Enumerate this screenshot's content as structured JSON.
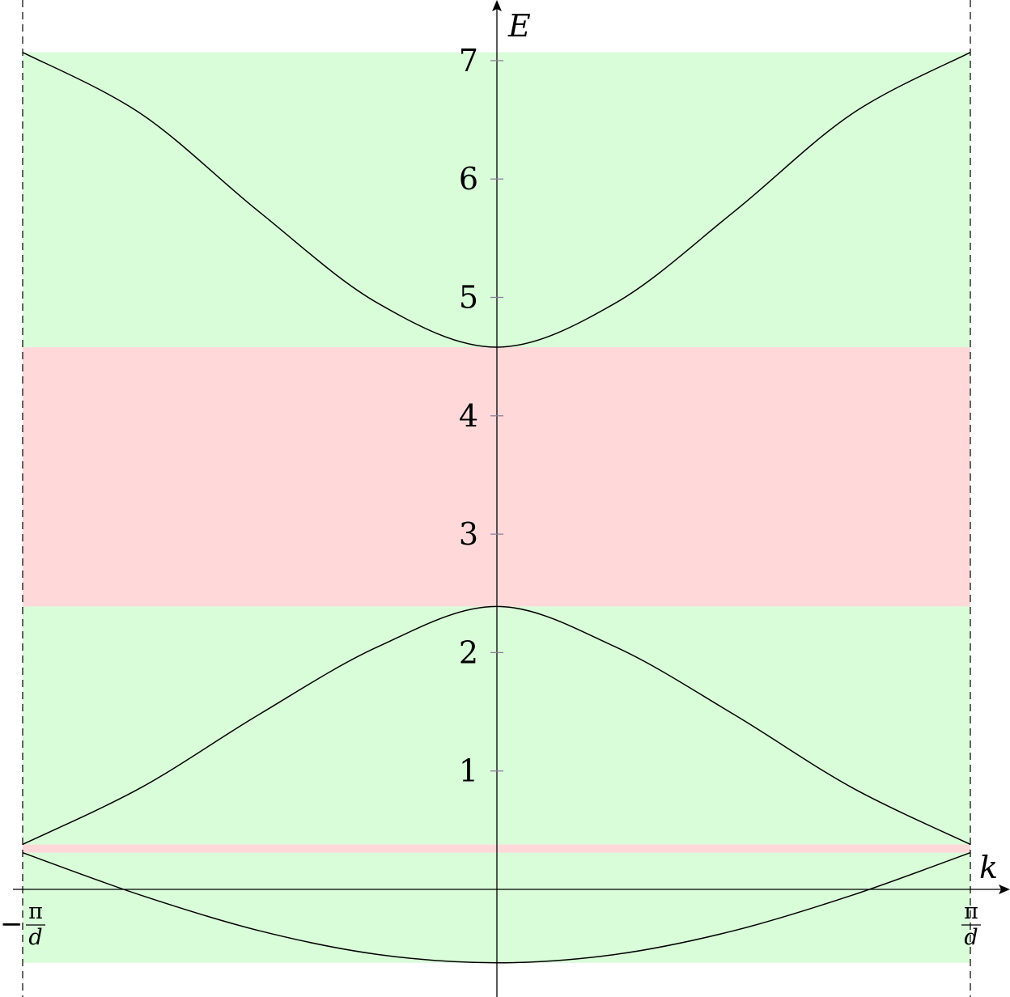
{
  "chart_data": {
    "type": "line",
    "xlabel": "k",
    "ylabel": "E",
    "xlim": [
      "-π/d",
      "π/d"
    ],
    "x_domain": [
      -1,
      1
    ],
    "ylim": [
      -0.62,
      7.5
    ],
    "yticks": [
      "1",
      "2",
      "3",
      "4",
      "5",
      "6",
      "7"
    ],
    "xticks": {
      "left": {
        "sign": "−",
        "numerator": "π",
        "denominator": "d"
      },
      "right": {
        "numerator": "π",
        "denominator": "d"
      }
    },
    "boundary_lines": "dashed vertical lines at k = ±π/d",
    "bands": [
      {
        "kind": "allowed",
        "from": -0.62,
        "to": 0.31
      },
      {
        "kind": "gap",
        "from": 0.31,
        "to": 0.38
      },
      {
        "kind": "allowed",
        "from": 0.38,
        "to": 2.39
      },
      {
        "kind": "gap",
        "from": 2.39,
        "to": 4.58
      },
      {
        "kind": "allowed",
        "from": 4.58,
        "to": 7.07
      }
    ],
    "series": [
      {
        "x": [
          -1,
          -0.75,
          -0.5,
          -0.25,
          0,
          0.25,
          0.5,
          0.75,
          1
        ],
        "y": [
          0.31,
          -0.05,
          -0.35,
          -0.55,
          -0.62,
          -0.55,
          -0.35,
          -0.05,
          0.31
        ]
      },
      {
        "x": [
          -1,
          -0.75,
          -0.5,
          -0.25,
          0,
          0.25,
          0.5,
          0.75,
          1
        ],
        "y": [
          0.38,
          0.86,
          1.48,
          2.05,
          2.39,
          2.05,
          1.48,
          0.86,
          0.38
        ]
      },
      {
        "x": [
          -1,
          -0.75,
          -0.5,
          -0.25,
          0,
          0.25,
          0.5,
          0.75,
          1
        ],
        "y": [
          7.07,
          6.55,
          5.72,
          4.95,
          4.58,
          4.95,
          5.72,
          6.55,
          7.07
        ]
      }
    ],
    "colors": {
      "allowed": "#d9fcd9",
      "gap": "#ffd9d9",
      "curve": "#000000",
      "axis": "#000000",
      "tick": "#8c7f9c"
    }
  }
}
